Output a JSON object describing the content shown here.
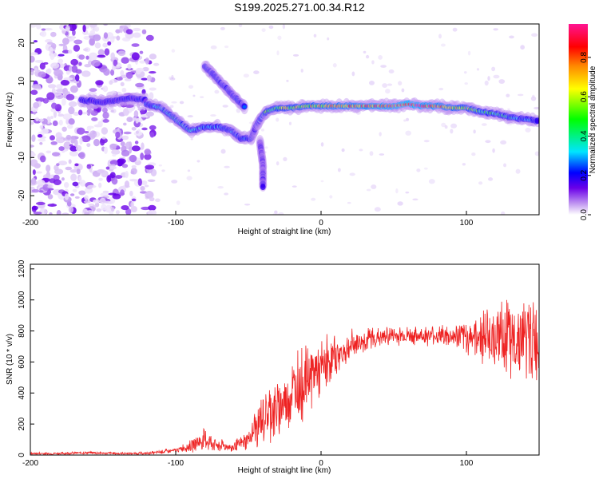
{
  "chart_data": [
    {
      "type": "heatmap",
      "title": "S199.2025.271.00.34.R12",
      "xlabel": "Height of straight line (km)",
      "ylabel": "Frequency (Hz)",
      "xlim": [
        -200,
        150
      ],
      "ylim": [
        -25,
        25
      ],
      "x_ticks": [
        -200,
        -100,
        0,
        100
      ],
      "y_ticks": [
        20,
        10,
        0,
        -10,
        -20
      ],
      "colorbar": {
        "label": "Normalized spectral amplitude",
        "range": [
          0.0,
          0.97
        ],
        "ticks": [
          0.0,
          0.2,
          0.4,
          0.6,
          0.8
        ],
        "colors": [
          "#ffffff",
          "#c9a6f2",
          "#6a00e8",
          "#0000ff",
          "#00e5ff",
          "#00ff00",
          "#ffff00",
          "#ff8800",
          "#ff0000",
          "#ff1493"
        ]
      },
      "noise_field": {
        "x_range": [
          -200,
          -115
        ],
        "freq_range": [
          -25,
          25
        ],
        "amplitude": 0.2
      },
      "ridges": [
        {
          "name": "low-altitude trace",
          "points": [
            [
              -165,
              5
            ],
            [
              -150,
              4.5
            ],
            [
              -130,
              5.5
            ],
            [
              -120,
              5
            ]
          ],
          "amplitude": 0.3
        },
        {
          "name": "main trace",
          "points": [
            [
              -120,
              4
            ],
            [
              -110,
              3
            ],
            [
              -100,
              0
            ],
            [
              -90,
              -3
            ],
            [
              -80,
              -2
            ],
            [
              -70,
              -2
            ],
            [
              -62,
              -3
            ],
            [
              -55,
              -5
            ],
            [
              -48,
              -5
            ],
            [
              -45,
              -2
            ],
            [
              -42,
              0
            ],
            [
              -38,
              2
            ],
            [
              -30,
              3
            ],
            [
              -20,
              3
            ],
            [
              -10,
              3.5
            ],
            [
              0,
              3.5
            ],
            [
              10,
              3.5
            ],
            [
              20,
              3.5
            ],
            [
              30,
              3.5
            ],
            [
              40,
              3.5
            ],
            [
              50,
              3.5
            ],
            [
              60,
              4
            ],
            [
              70,
              3.5
            ],
            [
              80,
              3.5
            ],
            [
              90,
              3
            ],
            [
              100,
              3
            ],
            [
              110,
              2
            ],
            [
              120,
              1.5
            ],
            [
              130,
              0.5
            ],
            [
              140,
              0
            ],
            [
              150,
              -0.5
            ]
          ],
          "amplitude": [
            0.35,
            0.45,
            0.5,
            0.45,
            0.4,
            0.4,
            0.4,
            0.35,
            0.35,
            0.3,
            0.4,
            0.55,
            0.6,
            0.65,
            0.7,
            0.75,
            0.8,
            0.82,
            0.85,
            0.9,
            0.92,
            0.95,
            0.9,
            0.85,
            0.75,
            0.65,
            0.55,
            0.5,
            0.45,
            0.4,
            0.35
          ]
        },
        {
          "name": "upper branch",
          "points": [
            [
              -80,
              14
            ],
            [
              -70,
              10
            ],
            [
              -60,
              6
            ],
            [
              -52,
              3
            ]
          ],
          "amplitude": 0.35
        },
        {
          "name": "lower branch",
          "points": [
            [
              -42,
              -6
            ],
            [
              -40,
              -12
            ],
            [
              -40,
              -18
            ]
          ],
          "amplitude": 0.25
        }
      ]
    },
    {
      "type": "line",
      "xlabel": "Height of straight line (km)",
      "ylabel": "SNR (10 * v/v)",
      "xlim": [
        -200,
        150
      ],
      "ylim": [
        0,
        1230
      ],
      "x_ticks": [
        -200,
        -100,
        0,
        100
      ],
      "y_ticks": [
        0,
        200,
        400,
        600,
        800,
        1000,
        1200
      ],
      "color": "#ee2222",
      "series": [
        {
          "name": "SNR",
          "x": [
            -200,
            -180,
            -160,
            -140,
            -120,
            -100,
            -90,
            -80,
            -70,
            -60,
            -50,
            -40,
            -30,
            -20,
            -10,
            0,
            10,
            20,
            30,
            40,
            50,
            60,
            70,
            80,
            90,
            100,
            110,
            120,
            130,
            140,
            150
          ],
          "values": [
            10,
            10,
            15,
            10,
            10,
            30,
            60,
            100,
            60,
            50,
            100,
            250,
            300,
            400,
            500,
            550,
            640,
            700,
            740,
            760,
            770,
            770,
            770,
            770,
            760,
            760,
            770,
            760,
            760,
            740,
            740
          ],
          "noise_band": [
            8,
            8,
            10,
            8,
            8,
            15,
            40,
            70,
            40,
            35,
            60,
            180,
            200,
            230,
            230,
            200,
            140,
            100,
            80,
            70,
            60,
            60,
            60,
            70,
            80,
            110,
            160,
            200,
            250,
            280,
            280
          ]
        }
      ]
    }
  ]
}
